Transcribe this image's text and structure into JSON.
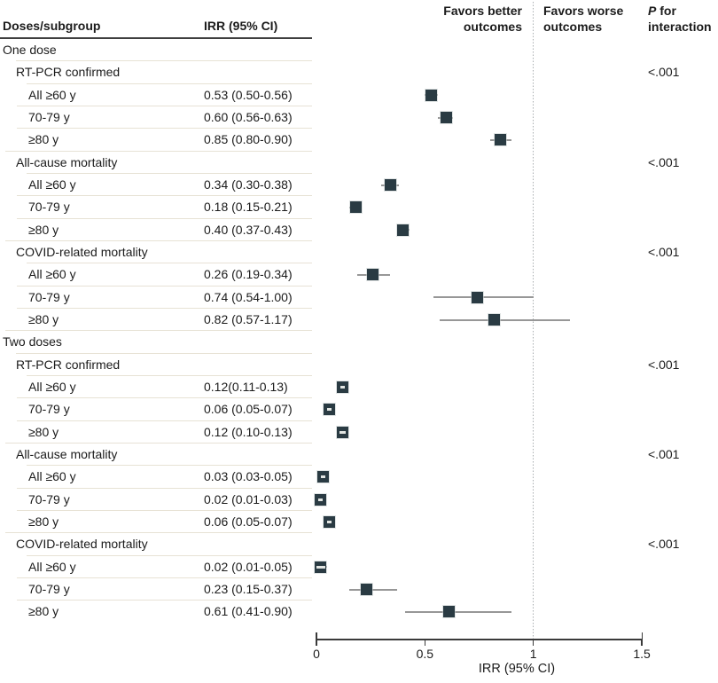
{
  "header": {
    "col_subgroup": "Doses/subgroup",
    "col_irr": "IRR (95% CI)",
    "favors_better": "Favors better\noutcomes",
    "favors_worse": "Favors worse\noutcomes",
    "p_italic": "P",
    "p_rest": " for",
    "p_line2": "interaction"
  },
  "colors": {
    "marker": "#2a3b43",
    "ci_line": "#979797",
    "inner_dash": "#e3e6e3",
    "row_rule": "#e7e2d5",
    "header_rule": "#3f3f3f",
    "axis": "#3a3a3a",
    "ref_line": "#a9aeb0",
    "text": "#1b1b1b"
  },
  "chart_data": {
    "type": "forest",
    "xlabel": "IRR (95% CI)",
    "xlim": [
      0,
      1.5
    ],
    "x_ticks": [
      0,
      0.5,
      1,
      1.5
    ],
    "x_tick_labels": [
      "0",
      "0.5",
      "1",
      "1.5"
    ],
    "reference_line": 1,
    "legend_left": "Favors better outcomes",
    "legend_right": "Favors worse outcomes",
    "p_column_title": "P for interaction",
    "rows": [
      {
        "label": "One dose",
        "level": 0,
        "irr": "",
        "est": null,
        "lo": null,
        "hi": null,
        "p": "",
        "rule": 18
      },
      {
        "label": "RT-PCR confirmed",
        "level": 1,
        "irr": "",
        "est": null,
        "lo": null,
        "hi": null,
        "p": "<.001",
        "rule": 30
      },
      {
        "label": "All ≥60 y",
        "level": 2,
        "irr": "0.53 (0.50-0.56)",
        "est": 0.53,
        "lo": 0.5,
        "hi": 0.56,
        "p": "",
        "rule": 19
      },
      {
        "label": "70-79 y",
        "level": 2,
        "irr": "0.60 (0.56-0.63)",
        "est": 0.6,
        "lo": 0.56,
        "hi": 0.63,
        "p": "",
        "rule": 19
      },
      {
        "label": "≥80 y",
        "level": 2,
        "irr": "0.85 (0.80-0.90)",
        "est": 0.85,
        "lo": 0.8,
        "hi": 0.9,
        "p": "",
        "rule": 6
      },
      {
        "label": "All-cause mortality",
        "level": 1,
        "irr": "",
        "est": null,
        "lo": null,
        "hi": null,
        "p": "<.001",
        "rule": 30
      },
      {
        "label": "All ≥60 y",
        "level": 2,
        "irr": "0.34 (0.30-0.38)",
        "est": 0.34,
        "lo": 0.3,
        "hi": 0.38,
        "p": "",
        "rule": 19
      },
      {
        "label": "70-79 y",
        "level": 2,
        "irr": "0.18 (0.15-0.21)",
        "est": 0.18,
        "lo": 0.15,
        "hi": 0.21,
        "p": "",
        "rule": 19
      },
      {
        "label": "≥80 y",
        "level": 2,
        "irr": "0.40 (0.37-0.43)",
        "est": 0.4,
        "lo": 0.37,
        "hi": 0.43,
        "p": "",
        "rule": 6
      },
      {
        "label": "COVID-related mortality",
        "level": 1,
        "irr": "",
        "est": null,
        "lo": null,
        "hi": null,
        "p": "<.001",
        "rule": 30
      },
      {
        "label": "All ≥60 y",
        "level": 2,
        "irr": "0.26 (0.19-0.34)",
        "est": 0.26,
        "lo": 0.19,
        "hi": 0.34,
        "p": "",
        "rule": 19
      },
      {
        "label": "70-79 y",
        "level": 2,
        "irr": "0.74 (0.54-1.00)",
        "est": 0.74,
        "lo": 0.54,
        "hi": 1.0,
        "p": "",
        "rule": 19
      },
      {
        "label": "≥80 y",
        "level": 2,
        "irr": "0.82 (0.57-1.17)",
        "est": 0.82,
        "lo": 0.57,
        "hi": 1.17,
        "p": "",
        "rule": 6
      },
      {
        "label": "Two doses",
        "level": 0,
        "irr": "",
        "est": null,
        "lo": null,
        "hi": null,
        "p": "",
        "rule": 18
      },
      {
        "label": "RT-PCR confirmed",
        "level": 1,
        "irr": "",
        "est": null,
        "lo": null,
        "hi": null,
        "p": "<.001",
        "rule": 30
      },
      {
        "label": "All ≥60 y",
        "level": 2,
        "irr": "0.12(0.11-0.13)",
        "est": 0.12,
        "lo": 0.11,
        "hi": 0.13,
        "p": "",
        "rule": 19
      },
      {
        "label": "70-79 y",
        "level": 2,
        "irr": "0.06 (0.05-0.07)",
        "est": 0.06,
        "lo": 0.05,
        "hi": 0.07,
        "p": "",
        "rule": 19
      },
      {
        "label": "≥80 y",
        "level": 2,
        "irr": "0.12 (0.10-0.13)",
        "est": 0.12,
        "lo": 0.1,
        "hi": 0.13,
        "p": "",
        "rule": 6
      },
      {
        "label": "All-cause mortality",
        "level": 1,
        "irr": "",
        "est": null,
        "lo": null,
        "hi": null,
        "p": "<.001",
        "rule": 30
      },
      {
        "label": "All ≥60 y",
        "level": 2,
        "irr": "0.03 (0.03-0.05)",
        "est": 0.03,
        "lo": 0.03,
        "hi": 0.05,
        "p": "",
        "rule": 19
      },
      {
        "label": "70-79 y",
        "level": 2,
        "irr": "0.02 (0.01-0.03)",
        "est": 0.02,
        "lo": 0.01,
        "hi": 0.03,
        "p": "",
        "rule": 19
      },
      {
        "label": "≥80 y",
        "level": 2,
        "irr": "0.06 (0.05-0.07)",
        "est": 0.06,
        "lo": 0.05,
        "hi": 0.07,
        "p": "",
        "rule": 6
      },
      {
        "label": "COVID-related mortality",
        "level": 1,
        "irr": "",
        "est": null,
        "lo": null,
        "hi": null,
        "p": "<.001",
        "rule": 30
      },
      {
        "label": "All ≥60 y",
        "level": 2,
        "irr": "0.02 (0.01-0.05)",
        "est": 0.02,
        "lo": 0.01,
        "hi": 0.05,
        "p": "",
        "rule": 19
      },
      {
        "label": "70-79 y",
        "level": 2,
        "irr": "0.23 (0.15-0.37)",
        "est": 0.23,
        "lo": 0.15,
        "hi": 0.37,
        "p": "",
        "rule": 19
      },
      {
        "label": "≥80 y",
        "level": 2,
        "irr": "0.61 (0.41-0.90)",
        "est": 0.61,
        "lo": 0.41,
        "hi": 0.9,
        "p": "",
        "rule": null
      }
    ]
  }
}
